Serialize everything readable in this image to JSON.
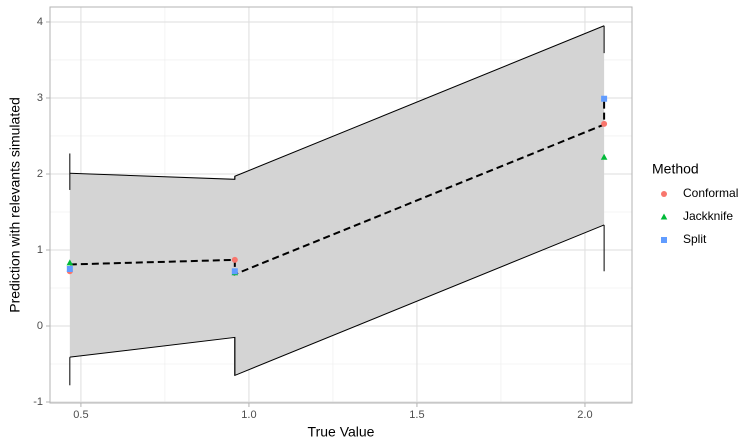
{
  "chart_data": {
    "type": "ribbon-scatter",
    "xlabel": "True Value",
    "ylabel": "Prediction with relevants simulated",
    "legend_title": "Method",
    "legend_position": "right",
    "xlim": [
      0.408,
      2.14
    ],
    "ylim": [
      -1.013,
      4.197
    ],
    "xticks": [
      0.5,
      {
        "value": 1,
        "label": "1.0"
      },
      1.5,
      {
        "value": 2,
        "label": "2.0"
      }
    ],
    "yticks": [
      -1,
      0,
      1,
      2,
      3,
      4
    ],
    "grid": true,
    "band": {
      "color": "#d4d4d4",
      "x": [
        0.467,
        0.958,
        0.958,
        2.057
      ],
      "ymin": [
        -0.41,
        -0.15,
        -0.65,
        1.33
      ],
      "ymax": [
        2.01,
        1.93,
        1.97,
        3.95
      ]
    },
    "edge_segments": [
      {
        "x": 0.467,
        "y": [
          1.79,
          2.27
        ]
      },
      {
        "x": 0.467,
        "y": [
          -0.78,
          -0.41
        ]
      },
      {
        "x": 0.958,
        "y": [
          1.93,
          1.97
        ]
      },
      {
        "x": 0.958,
        "y": [
          -0.65,
          -0.15
        ]
      },
      {
        "x": 2.057,
        "y": [
          3.59,
          3.95
        ]
      },
      {
        "x": 2.057,
        "y": [
          0.72,
          1.33
        ]
      }
    ],
    "mean_line": {
      "x": [
        0.467,
        0.958,
        0.958,
        2.057,
        2.057
      ],
      "y": [
        0.81,
        0.87,
        0.68,
        2.65,
        2.98
      ]
    },
    "series": [
      {
        "name": "Conformal",
        "color": "#F8766D",
        "shape": "circle",
        "x": [
          0.467,
          0.958,
          2.057
        ],
        "values": [
          0.72,
          0.87,
          2.66
        ]
      },
      {
        "name": "Jackknife",
        "color": "#00BA38",
        "shape": "triangle",
        "x": [
          0.467,
          0.958,
          2.057
        ],
        "values": [
          0.83,
          0.7,
          2.22
        ]
      },
      {
        "name": "Split",
        "color": "#619CFF",
        "shape": "square",
        "x": [
          0.467,
          0.958,
          2.057
        ],
        "values": [
          0.75,
          0.72,
          2.99
        ]
      }
    ]
  }
}
